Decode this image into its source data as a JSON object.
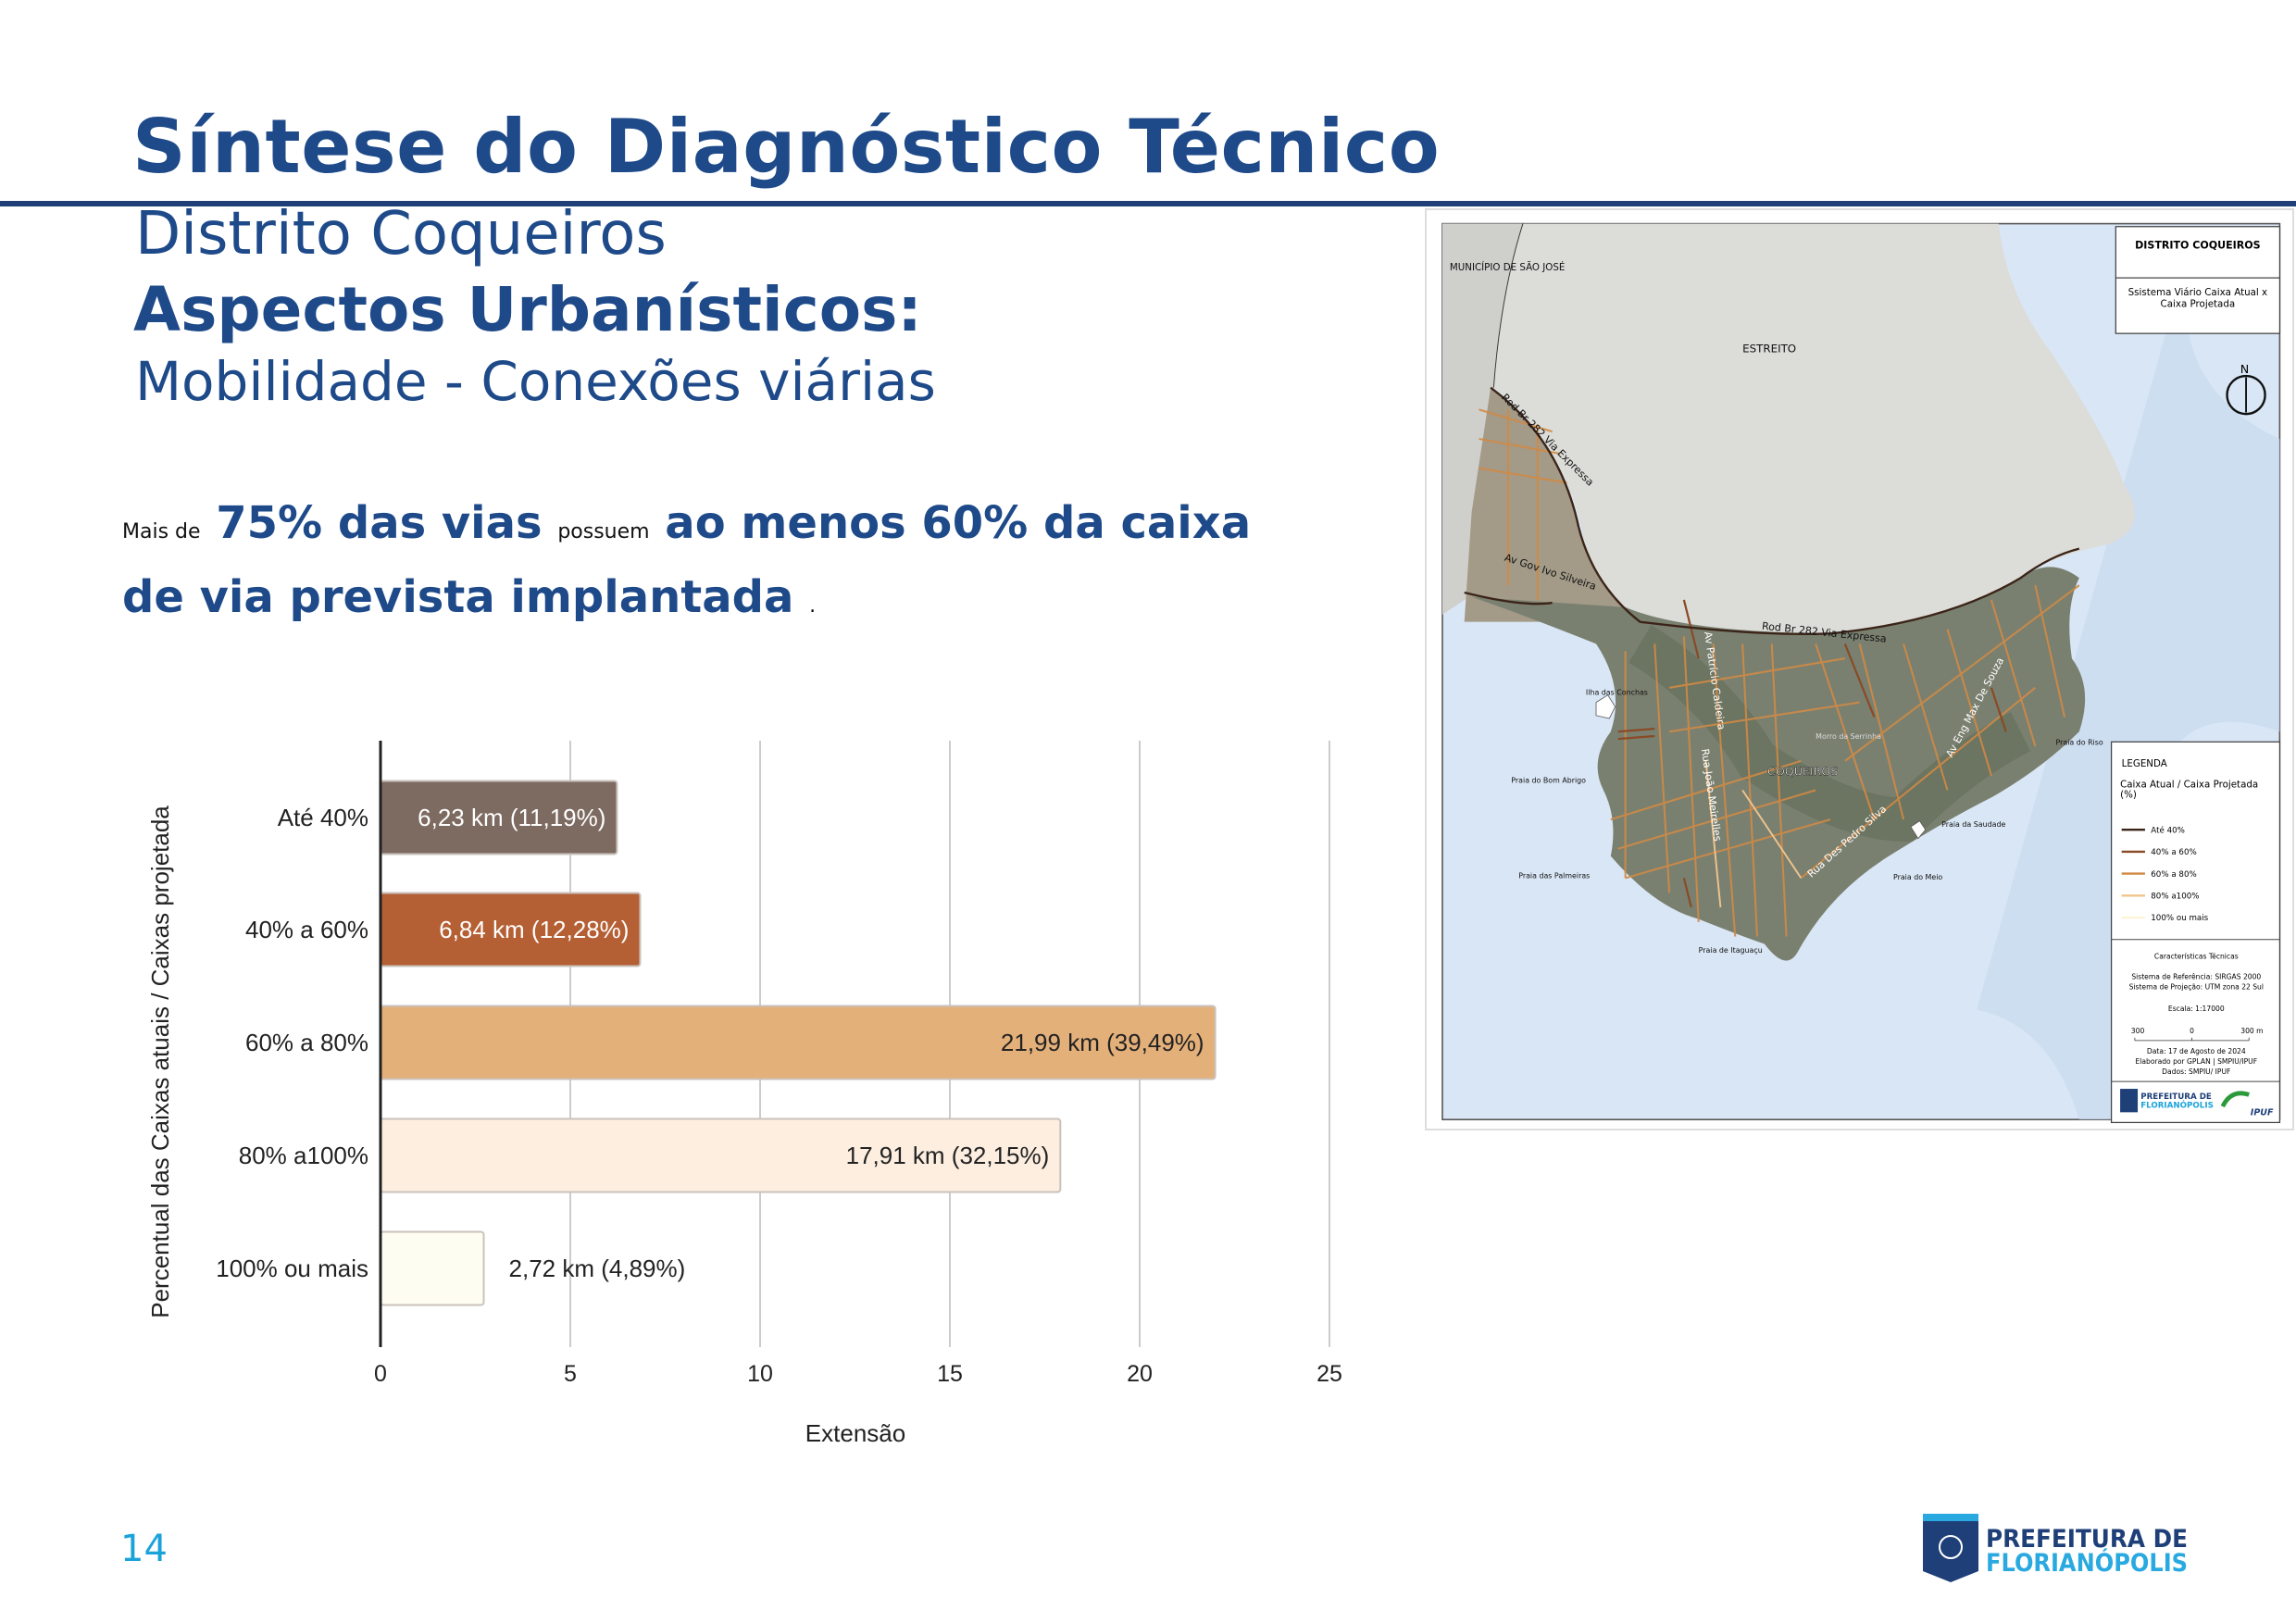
{
  "header": {
    "title": "Síntese do Diagnóstico Técnico",
    "district": "Distrito Coqueiros",
    "section": "Aspectos Urbanísticos:",
    "subsection": "Mobilidade - Conexões viárias"
  },
  "highlight": {
    "part1_small": "Mais de",
    "part2_big": "75% das vias",
    "part3_small": "possuem",
    "part4_big": "ao menos 60% da caixa de via prevista implantada",
    "part5_small": "."
  },
  "chart_data": {
    "type": "bar",
    "orientation": "horizontal",
    "categories": [
      "Até 40%",
      "40% a 60%",
      "60% a 80%",
      "80% a100%",
      "100% ou mais"
    ],
    "values": [
      6.23,
      6.84,
      21.99,
      17.91,
      2.72
    ],
    "data_labels": [
      "6,23 km (11,19%)",
      "6,84 km (12,28%)",
      "21,99 km (39,49%)",
      "17,91 km (32,15%)",
      "2,72 km (4,89%)"
    ],
    "colors": [
      "#7d6b61",
      "#b55f34",
      "#e4b07a",
      "#fdeee0",
      "#fefdf1"
    ],
    "xlabel": "Extensão",
    "ylabel": "Percentual das Caixas atuais / Caixas projetada",
    "xlim": [
      0,
      25
    ],
    "xticks": [
      "0",
      "5",
      "10",
      "15",
      "20",
      "25"
    ],
    "grid": true
  },
  "map": {
    "title": "DISTRITO COQUEIROS",
    "subtitle": "Ssistema Viário Caixa Atual x Caixa Projetada",
    "north": "N",
    "labels": {
      "sao_jose": "MUNICÍPIO DE SÃO JOSÉ",
      "estreito": "ESTREITO",
      "rod_br_282_a": "Rod Br 282 Via Expressa",
      "rod_br_282_b": "Rod Br 282 Via Expressa",
      "ivo_silveira": "Av Gov Ivo Silveira",
      "patricio": "Av Patrício Caldeira",
      "joao_meirelles": "Rua João Meirelles",
      "pedro_silva": "Rua Des Pedro Silva",
      "max_souza": "Av Eng Max De Souza",
      "coqueiros": "COQUEIROS",
      "morro": "Morro da Serrinha",
      "ilha_conchas": "Ilha das Conchas",
      "bom_abrigo": "Praia do Bom Abrigo",
      "palmeiras": "Praia das Palmeiras",
      "itaguacu": "Praia de Itaguaçu",
      "meio": "Praia do Meio",
      "saudade": "Praia da Saudade",
      "riso": "Praia do Riso"
    },
    "legend": {
      "heading": "LEGENDA",
      "title": "Caixa Atual / Caixa Projetada (%)",
      "items": [
        {
          "label": "Até 40%",
          "color": "#3b2418"
        },
        {
          "label": "40% a 60%",
          "color": "#8a4a25"
        },
        {
          "label": "60% a 80%",
          "color": "#d08a45"
        },
        {
          "label": "80% a100%",
          "color": "#f0c48e"
        },
        {
          "label": "100% ou mais",
          "color": "#fbf6d8"
        }
      ],
      "tech_title": "Características Técnicas",
      "ref_system": "Sistema de Referência: SIRGAS 2000",
      "proj_system": "Sistema de Projeção: UTM zona 22 Sul",
      "scale": "Escala: 1:17000",
      "scale_left": "300",
      "scale_mid": "0",
      "scale_right": "300 m",
      "date": "Data: 17 de Agosto de 2024",
      "author": "Elaborado por GPLAN | SMPIU/IPUF",
      "source": "Dados: SMPIU/ IPUF",
      "logo1_line1": "PREFEITURA DE",
      "logo1_line2": "FLORIANÓPOLIS",
      "logo2": "IPUF"
    }
  },
  "footer": {
    "page_number": "14",
    "logo_line1": "PREFEITURA DE",
    "logo_line2": "FLORIANÓPOLIS"
  },
  "colors": {
    "brand_blue": "#1e4a8a",
    "accent_cyan": "#1aa3d9"
  }
}
